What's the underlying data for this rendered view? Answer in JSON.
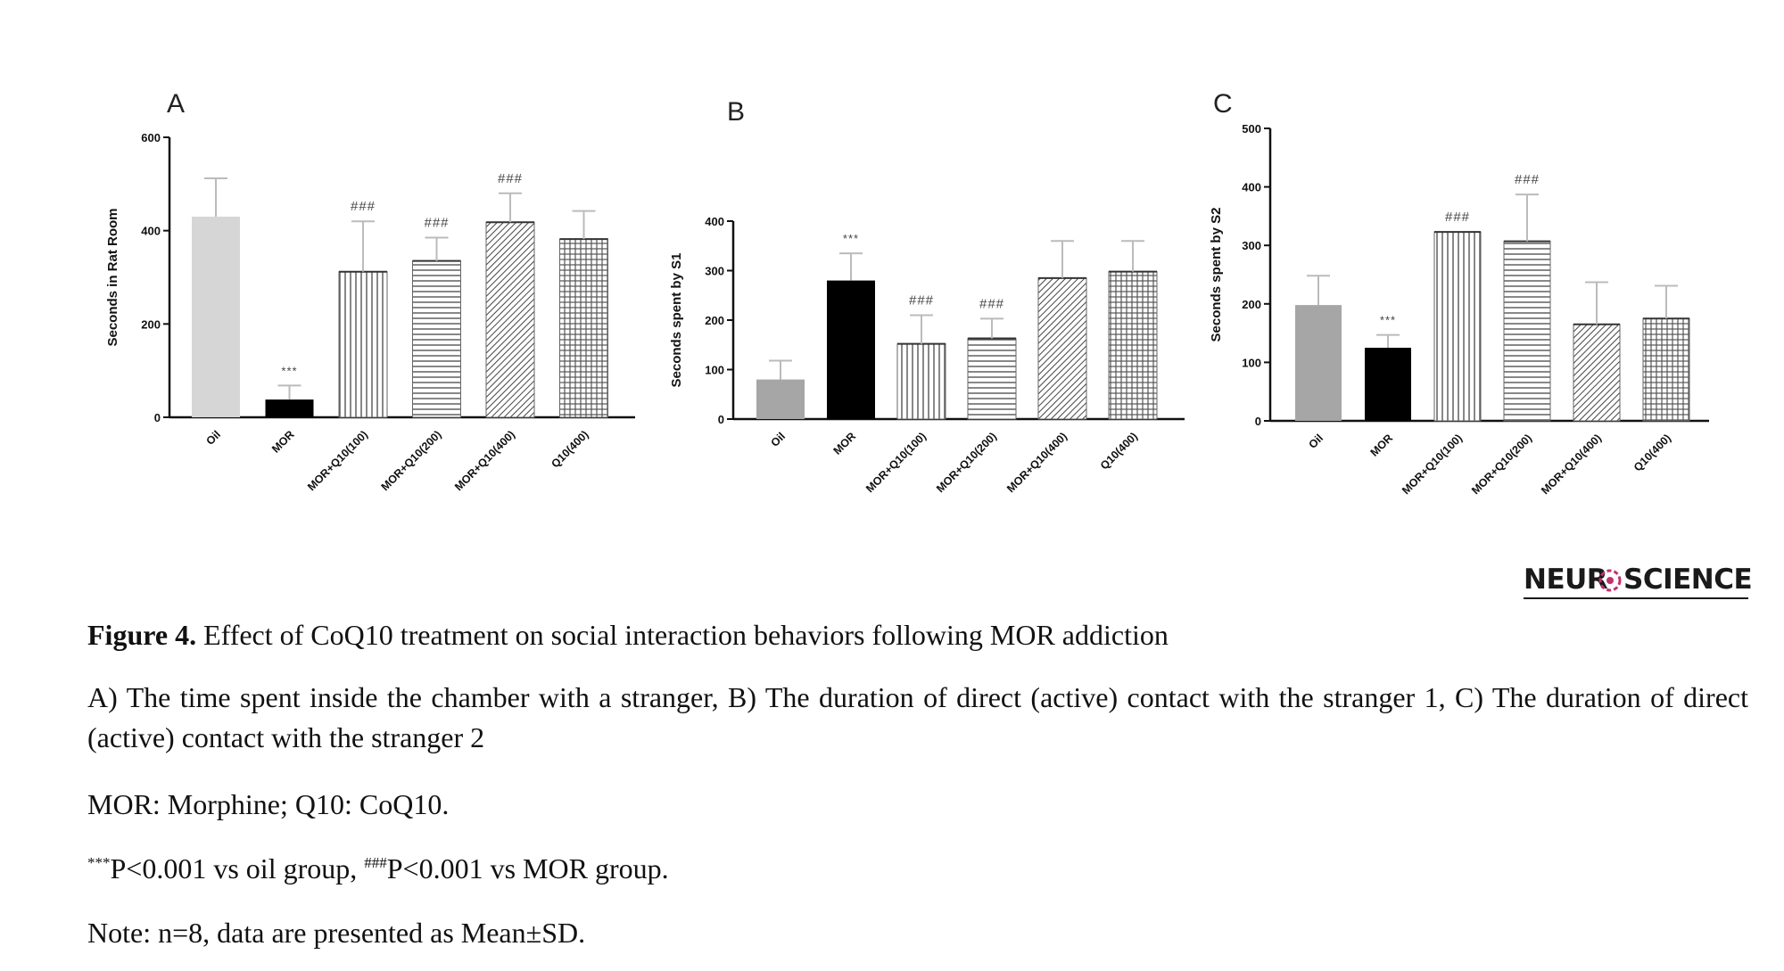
{
  "chart_data": [
    {
      "panel_label": "A",
      "type": "bar",
      "ylabel": "Seconds in Rat Room",
      "ylim": [
        0,
        600
      ],
      "yticks": [
        0,
        200,
        400,
        600
      ],
      "categories": [
        "Oil",
        "MOR",
        "MOR+Q10(100)",
        "MOR+Q10(200)",
        "MOR+Q10(400)",
        "Q10(400)"
      ],
      "values": [
        430,
        38,
        312,
        335,
        418,
        382
      ],
      "errors": [
        82,
        30,
        108,
        50,
        62,
        60
      ],
      "annotations": [
        "",
        "***",
        "###",
        "###",
        "###",
        ""
      ],
      "patterns": [
        "solid-light",
        "solid-black",
        "vertical",
        "horizontal",
        "diagonal",
        "grid"
      ]
    },
    {
      "panel_label": "B",
      "type": "bar",
      "ylabel": "Seconds spent by S1",
      "ylim": [
        0,
        400
      ],
      "yticks": [
        0,
        100,
        200,
        300,
        400
      ],
      "categories": [
        "Oil",
        "MOR",
        "MOR+Q10(100)",
        "MOR+Q10(200)",
        "MOR+Q10(400)",
        "Q10(400)"
      ],
      "values": [
        80,
        280,
        152,
        163,
        285,
        298
      ],
      "errors": [
        38,
        55,
        58,
        40,
        75,
        62
      ],
      "annotations": [
        "",
        "***",
        "###",
        "###",
        "",
        ""
      ],
      "patterns": [
        "solid-gray",
        "solid-black",
        "vertical",
        "horizontal",
        "diagonal",
        "grid"
      ]
    },
    {
      "panel_label": "C",
      "type": "bar",
      "ylabel": "Seconds spent by S2",
      "ylim": [
        0,
        500
      ],
      "yticks": [
        0,
        100,
        200,
        300,
        400,
        500
      ],
      "categories": [
        "Oil",
        "MOR",
        "MOR+Q10(100)",
        "MOR+Q10(200)",
        "MOR+Q10(400)",
        "Q10(400)"
      ],
      "values": [
        198,
        125,
        323,
        307,
        165,
        175
      ],
      "errors": [
        50,
        22,
        0,
        80,
        72,
        56
      ],
      "annotations": [
        "",
        "***",
        "###",
        "###",
        "",
        ""
      ],
      "patterns": [
        "solid-gray",
        "solid-black",
        "vertical",
        "horizontal",
        "diagonal",
        "grid"
      ]
    }
  ],
  "logo": {
    "part1": "NEUR",
    "part2": "SCIENCE"
  },
  "caption": {
    "title_bold": "Figure 4.",
    "title_rest": " Effect of CoQ10 treatment on social interaction behaviors following MOR addiction",
    "description": "A) The time spent inside the chamber with a stranger, B) The duration of direct (active) contact with the stranger 1, C) The duration of direct (active) contact with the stranger 2",
    "abbreviations": "MOR: Morphine; Q10: CoQ10.",
    "sig_mark1": "***",
    "sig_text1": "P<0.001 vs oil group, ",
    "sig_mark2": "###",
    "sig_text2": "P<0.001 vs MOR group.",
    "note": "Note: n=8, data are presented as Mean±SD."
  },
  "colors": {
    "solid_light": "#d6d6d6",
    "solid_gray": "#a6a6a6",
    "black": "#000000",
    "pattern_line": "#555555",
    "logo_accent": "#c4306e"
  }
}
